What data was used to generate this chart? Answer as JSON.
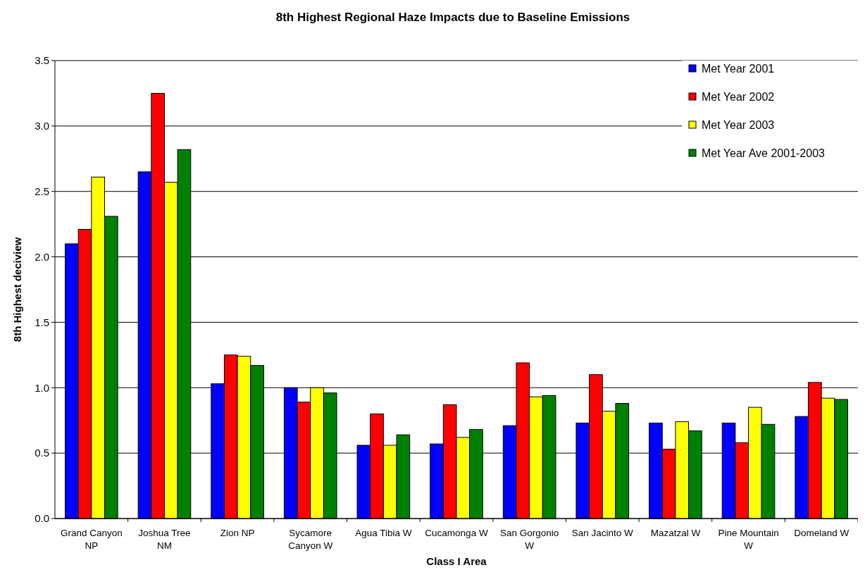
{
  "chart_data": {
    "type": "bar",
    "title": "8th Highest Regional Haze Impacts due to Baseline Emissions",
    "xlabel": "Class I Area",
    "ylabel": "8th Highest deciview",
    "categories": [
      "Grand Canyon NP",
      "Joshua Tree NM",
      "Zion NP",
      "Sycamore Canyon W",
      "Agua Tibia W",
      "Cucamonga W",
      "San Gorgonio W",
      "San Jacinto W",
      "Mazatzal W",
      "Pine Mountain W",
      "Domeland W"
    ],
    "series": [
      {
        "name": "Met Year 2001",
        "color": "#0000ff",
        "values": [
          2.1,
          2.65,
          1.03,
          1.0,
          0.56,
          0.57,
          0.71,
          0.73,
          0.73,
          0.73,
          0.78
        ]
      },
      {
        "name": "Met Year 2002",
        "color": "#ff0000",
        "values": [
          2.21,
          3.25,
          1.25,
          0.89,
          0.8,
          0.87,
          1.19,
          1.1,
          0.53,
          0.58,
          1.04
        ]
      },
      {
        "name": "Met Year 2003",
        "color": "#ffff00",
        "values": [
          2.61,
          2.57,
          1.24,
          1.0,
          0.56,
          0.62,
          0.93,
          0.82,
          0.74,
          0.85,
          0.92
        ]
      },
      {
        "name": "Met Year Ave 2001-2003",
        "color": "#008000",
        "values": [
          2.31,
          2.82,
          1.17,
          0.96,
          0.64,
          0.68,
          0.94,
          0.88,
          0.67,
          0.72,
          0.91
        ]
      }
    ],
    "ylim": [
      0,
      3.5
    ],
    "yticks": [
      {
        "value": 0,
        "label": "0.0"
      },
      {
        "value": 0.5,
        "label": "0.5"
      },
      {
        "value": 1,
        "label": "1.0"
      },
      {
        "value": 1.5,
        "label": "1.5"
      },
      {
        "value": 2,
        "label": "2.0"
      },
      {
        "value": 2.5,
        "label": "2.5"
      },
      {
        "value": 3,
        "label": "3.0"
      },
      {
        "value": 3.5,
        "label": "3.5"
      }
    ],
    "grid": "y",
    "legend": "top right"
  }
}
